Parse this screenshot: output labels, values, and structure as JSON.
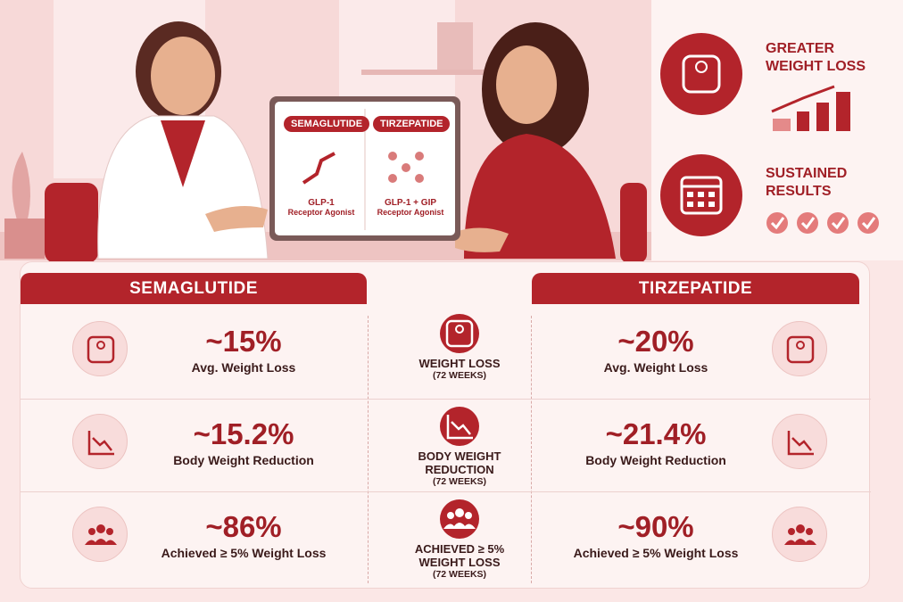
{
  "hero": {
    "tablet": {
      "left": {
        "title": "SEMAGLUTIDE",
        "mechanism": "GLP-1",
        "mechanism_detail": "Receptor Agonist"
      },
      "right": {
        "title": "TIRZEPATIDE",
        "mechanism": "GLP-1 + GIP",
        "mechanism_detail": "Receptor Agonist"
      }
    }
  },
  "highlights": [
    {
      "label": "GREATER WEIGHT LOSS"
    },
    {
      "label": "SUSTAINED RESULTS"
    }
  ],
  "table": {
    "headers": {
      "left": "SEMAGLUTIDE",
      "right": "TIRZEPATIDE"
    },
    "rows": [
      {
        "left_value": "~15%",
        "left_label": "Avg. Weight Loss",
        "metric": "WEIGHT LOSS",
        "period": "(72 WEEKS)",
        "right_value": "~20%",
        "right_label": "Avg. Weight Loss"
      },
      {
        "left_value": "~15.2%",
        "left_label": "Body Weight Reduction",
        "metric": "BODY WEIGHT REDUCTION",
        "period": "(72 WEEKS)",
        "right_value": "~21.4%",
        "right_label": "Body Weight Reduction"
      },
      {
        "left_value": "~86%",
        "left_label": "Achieved ≥ 5% Weight Loss",
        "metric": "ACHIEVED ≥ 5% WEIGHT LOSS",
        "period": "(72 WEEKS)",
        "right_value": "~90%",
        "right_label": "Achieved ≥ 5% Weight Loss"
      }
    ]
  }
}
